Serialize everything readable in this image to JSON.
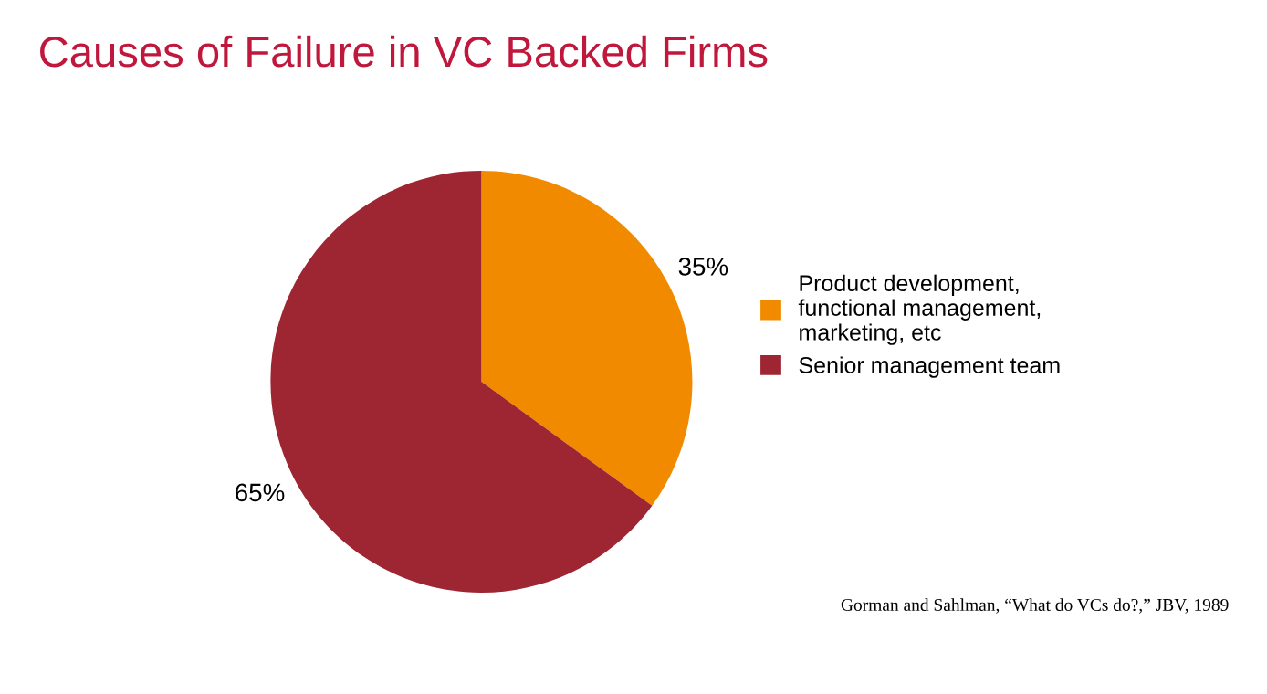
{
  "chart_data": {
    "type": "pie",
    "title": "Causes of Failure in VC Backed Firms",
    "categories": [
      "Product development, functional management, marketing, etc",
      "Senior management team"
    ],
    "values": [
      35,
      65
    ],
    "colors": [
      "#f28a00",
      "#9e2632"
    ],
    "value_labels": [
      "35%",
      "65%"
    ],
    "legend": "right",
    "annotations": [
      "Gorman and Sahlman, “What do VCs do?,” JBV, 1989"
    ]
  }
}
